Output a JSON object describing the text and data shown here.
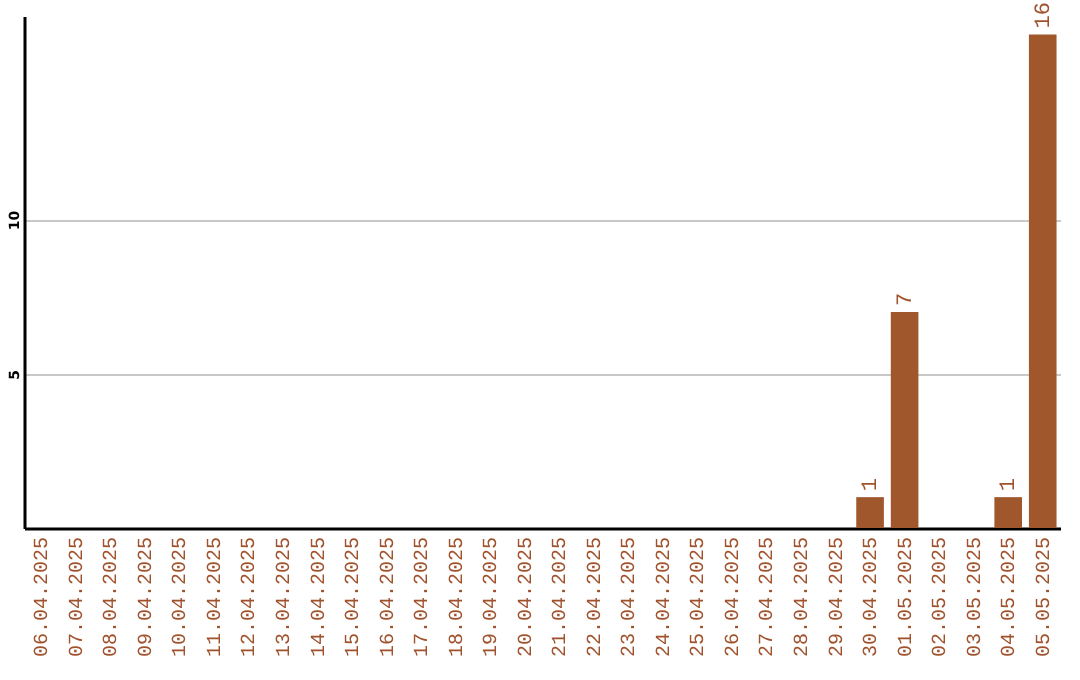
{
  "chart_data": {
    "type": "bar",
    "categories": [
      "06.04.2025",
      "07.04.2025",
      "08.04.2025",
      "09.04.2025",
      "10.04.2025",
      "11.04.2025",
      "12.04.2025",
      "13.04.2025",
      "14.04.2025",
      "15.04.2025",
      "16.04.2025",
      "17.04.2025",
      "18.04.2025",
      "19.04.2025",
      "20.04.2025",
      "21.04.2025",
      "22.04.2025",
      "23.04.2025",
      "24.04.2025",
      "25.04.2025",
      "26.04.2025",
      "27.04.2025",
      "28.04.2025",
      "29.04.2025",
      "30.04.2025",
      "01.05.2025",
      "02.05.2025",
      "03.05.2025",
      "04.05.2025",
      "05.05.2025"
    ],
    "values": [
      0,
      0,
      0,
      0,
      0,
      0,
      0,
      0,
      0,
      0,
      0,
      0,
      0,
      0,
      0,
      0,
      0,
      0,
      0,
      0,
      0,
      0,
      0,
      0,
      1,
      7,
      0,
      0,
      1,
      16
    ],
    "value_labels": [
      null,
      null,
      null,
      null,
      null,
      null,
      null,
      null,
      null,
      null,
      null,
      null,
      null,
      null,
      null,
      null,
      null,
      null,
      null,
      null,
      null,
      null,
      null,
      null,
      "1",
      "7",
      null,
      null,
      "1",
      "16"
    ],
    "color": "#a0572b",
    "ylim": [
      0,
      16.6
    ],
    "yticks": [
      5,
      10
    ],
    "grid": "y"
  }
}
